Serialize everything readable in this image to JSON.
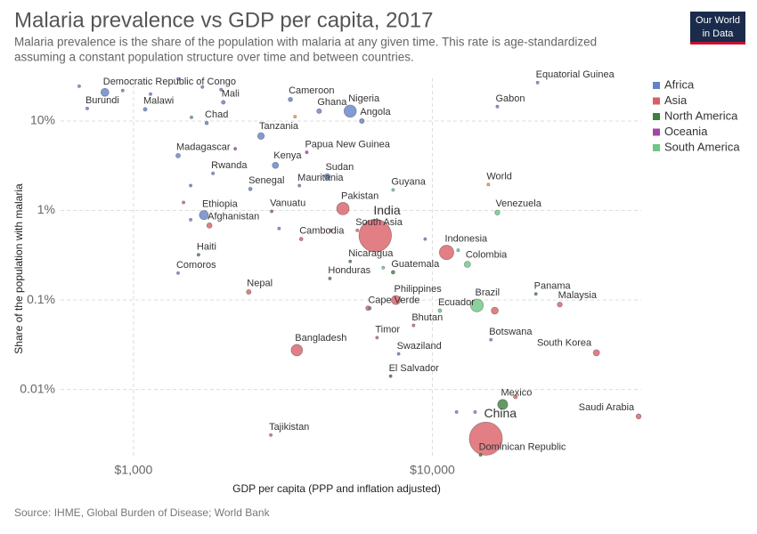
{
  "chart_data": {
    "type": "scatter",
    "title": "Malaria prevalence vs GDP per capita, 2017",
    "subtitle": [
      "Malaria prevalence is the share of the population with malaria at any given time. This rate is age-standardized",
      "assuming a constant population structure over time and between countries."
    ],
    "x_label": "GDP per capita (PPP and inflation adjusted)",
    "y_label": "Share of the population with malaria",
    "source": "Source: IHME, Global Burden of Disease; World Bank",
    "logo": [
      "Our World",
      "in Data"
    ],
    "xscale": "log",
    "yscale": "log",
    "grid": true,
    "legend": "top-right",
    "xlim": [
      570,
      50000
    ],
    "ylim": [
      0.0017,
      30
    ],
    "xticks": [
      {
        "value": 1000,
        "label": "$1,000"
      },
      {
        "value": 10000,
        "label": "$10,000"
      }
    ],
    "yticks": [
      {
        "value": 10,
        "label": "10%"
      },
      {
        "value": 1,
        "label": "1%"
      },
      {
        "value": 0.1,
        "label": "0.1%"
      },
      {
        "value": 0.01,
        "label": "0.01%"
      }
    ],
    "series": [
      {
        "name": "Africa",
        "color": "#6382c9",
        "labels": [
          "Democratic Republic of Congo",
          "Burundi",
          "Malawi",
          "Mali",
          "Chad",
          "Cameroon",
          "Ghana",
          "Nigeria",
          "Angola",
          "Tanzania",
          "Madagascar",
          "Kenya",
          "Sudan",
          "Rwanda",
          "Senegal",
          "Mauritania",
          "Ethiopia",
          "Gabon",
          "Equatorial Guinea",
          "Comoros",
          "Cape Verde",
          "Botswana",
          "Swaziland",
          null,
          null,
          null,
          null,
          null,
          null,
          null,
          null,
          null,
          null,
          null,
          null,
          null
        ],
        "x": [
          802,
          700,
          1094,
          1998,
          1757,
          3350,
          4180,
          5310,
          5810,
          2670,
          1410,
          2985,
          4450,
          1845,
          2460,
          3590,
          1720,
          16500,
          22500,
          1410,
          6180,
          15700,
          7710,
          658,
          920,
          1140,
          1410,
          1563,
          1553,
          1553,
          9460,
          12050,
          13900,
          1963,
          1700,
          3070
        ],
        "values": [
          20.9,
          13.8,
          13.5,
          16.2,
          9.5,
          17.4,
          12.9,
          12.9,
          10,
          6.8,
          4.1,
          3.2,
          2.4,
          2.6,
          1.74,
          1.9,
          0.89,
          14.5,
          26.9,
          0.2,
          0.081,
          0.036,
          0.025,
          24.5,
          21.9,
          20,
          29.5,
          11,
          1.9,
          0.79,
          0.48,
          0.0056,
          0.0056,
          22.4,
          24,
          0.63
        ],
        "sizes": [
          81,
          11,
          18,
          19,
          15,
          24,
          29,
          191,
          30,
          57,
          26,
          50,
          41,
          12,
          16,
          4,
          105,
          2,
          1.3,
          0.8,
          0.5,
          2.3,
          1.4,
          1,
          1,
          5,
          1,
          1,
          1,
          1,
          1,
          5,
          5,
          5,
          1,
          0.5
        ]
      },
      {
        "name": "Asia",
        "color": "#d95f66",
        "labels": [
          "India",
          "South Asia",
          "Pakistan",
          "Afghanistan",
          "Cambodia",
          "Indonesia",
          "Nepal",
          "Philippines",
          "Bhutan",
          "Timor",
          "Bangladesh",
          "Malaysia",
          "South Korea",
          "Saudi Arabia",
          "China",
          "Tajikistan",
          null,
          null,
          null,
          null,
          null
        ],
        "x": [
          6440,
          5610,
          5020,
          1795,
          3640,
          11160,
          2430,
          7550,
          8650,
          6530,
          3520,
          26700,
          35400,
          49000,
          15100,
          2880,
          6095,
          18970,
          16180,
          1470,
          4570
        ],
        "values": [
          0.525,
          0.6,
          1.05,
          0.68,
          0.48,
          0.34,
          0.123,
          0.1,
          0.052,
          0.038,
          0.0275,
          0.089,
          0.0257,
          0.005,
          0.00282,
          0.0031,
          0.081,
          0.0083,
          0.076,
          1.23,
          0.6
        ],
        "sizes": [
          1339,
          0.3,
          197,
          36,
          16,
          264,
          28,
          105,
          0.8,
          1.3,
          165,
          32,
          51,
          33,
          1386,
          9,
          28,
          21,
          64,
          1,
          3
        ]
      },
      {
        "name": "North America",
        "color": "#3d7f3d",
        "labels": [
          "Haiti",
          "Nicaragua",
          "Guatemala",
          "Honduras",
          "Panama",
          "Mexico",
          "El Salvador",
          "Dominican Republic"
        ],
        "x": [
          1650,
          5310,
          7390,
          4540,
          22200,
          17200,
          7250,
          14500
        ],
        "values": [
          0.32,
          0.27,
          0.204,
          0.174,
          0.117,
          0.0068,
          0.0141,
          0.00186
        ],
        "sizes": [
          11,
          6,
          17,
          9,
          4,
          129,
          6,
          11
        ]
      },
      {
        "name": "Oceania",
        "color": "#a445a6",
        "labels": [
          "Papua New Guinea",
          "Vanuatu",
          null
        ],
        "x": [
          3800,
          2900,
          2190
        ],
        "values": [
          4.47,
          0.98,
          4.9
        ],
        "sizes": [
          8,
          0.3,
          0.6
        ]
      },
      {
        "name": "South America",
        "color": "#6cc783",
        "labels": [
          "Guyana",
          "Venezuela",
          "Colombia",
          "Brazil",
          "Ecuador",
          null,
          null
        ],
        "x": [
          7390,
          16500,
          13100,
          14100,
          10600,
          12200,
          6850
        ],
        "values": [
          1.7,
          0.95,
          0.25,
          0.087,
          0.076,
          0.36,
          0.23
        ],
        "sizes": [
          0.8,
          32,
          49,
          209,
          17,
          4,
          0.6
        ]
      },
      {
        "color": "#e9a33a",
        "labels": [
          "World",
          null
        ],
        "x": [
          15400,
          3470
        ],
        "values": [
          1.95,
          11.2
        ],
        "sizes": [
          0.5,
          0.3
        ]
      }
    ]
  }
}
